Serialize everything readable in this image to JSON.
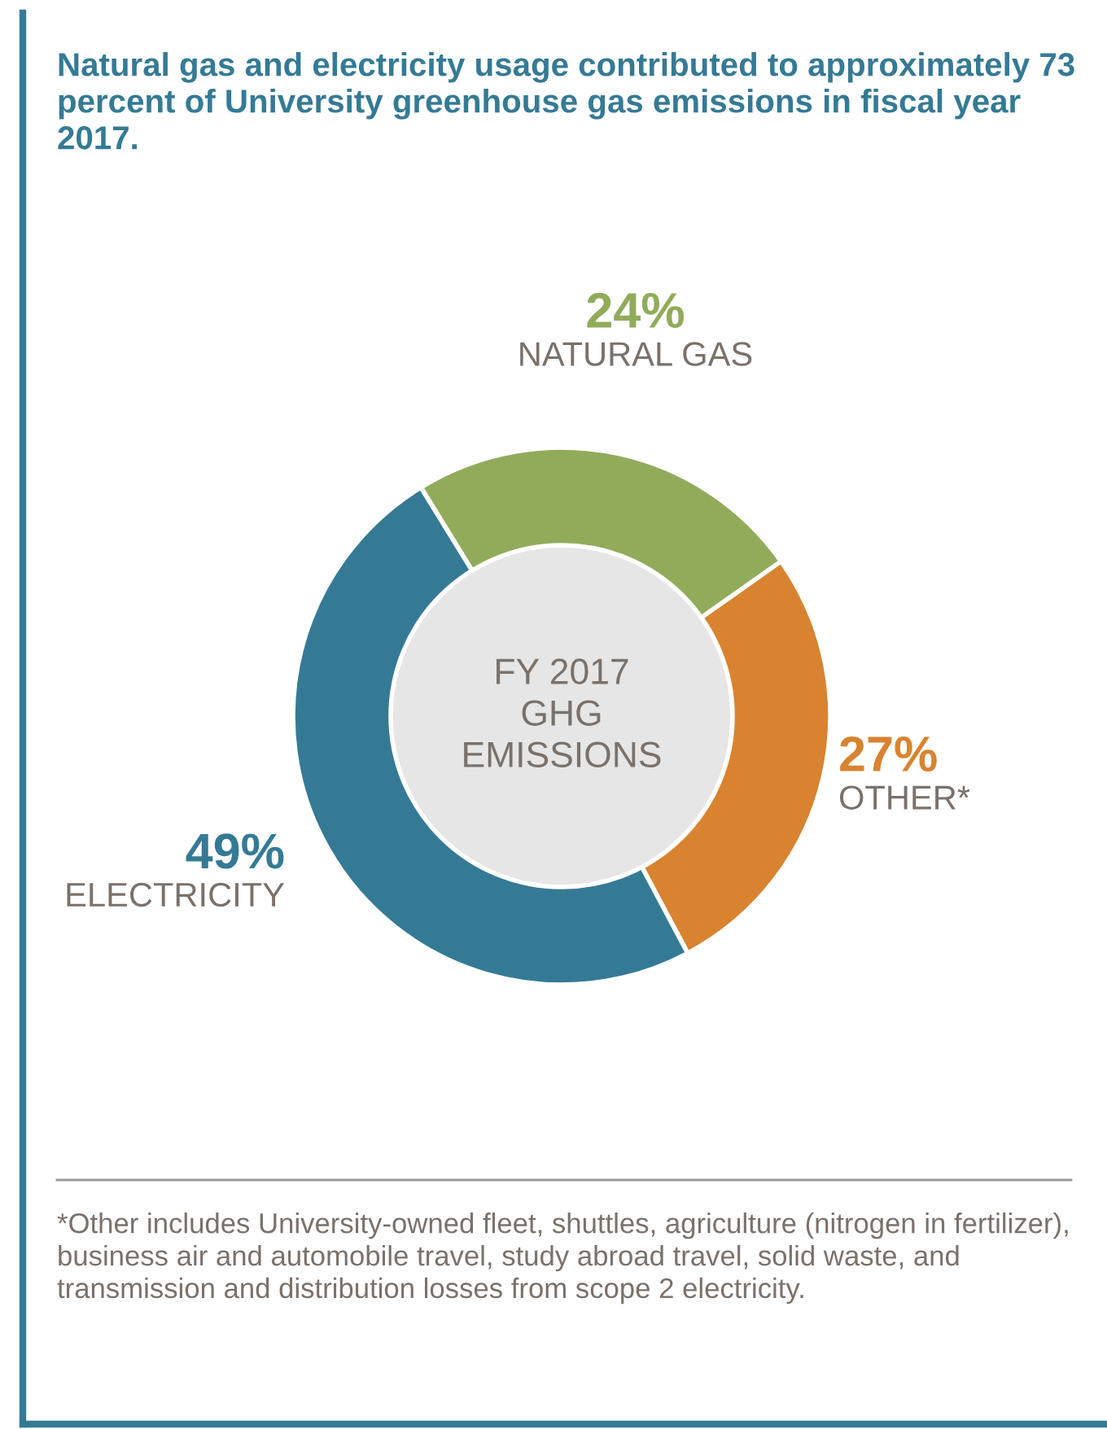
{
  "chart_data": {
    "type": "donut",
    "title": "Natural gas and electricity usage contributed to approximately 73 percent of University greenhouse gas emissions in fiscal year 2017.",
    "categories": [
      "NATURAL GAS",
      "OTHER*",
      "ELECTRICITY"
    ],
    "values": [
      24,
      27,
      49
    ],
    "value_labels": [
      "24%",
      "27%",
      "49%"
    ],
    "colors": [
      "#92ab5a",
      "#d8832f",
      "#357a95"
    ],
    "annotations": [
      "FY 2017\nGHG\nEMISSIONS",
      "*Other includes University-owned fleet, shuttles, agriculture (nitrogen in fertilizer), business air and automobile travel, study abroad travel, solid waste, and transmission and distribution losses from scope 2 electricity."
    ]
  }
}
